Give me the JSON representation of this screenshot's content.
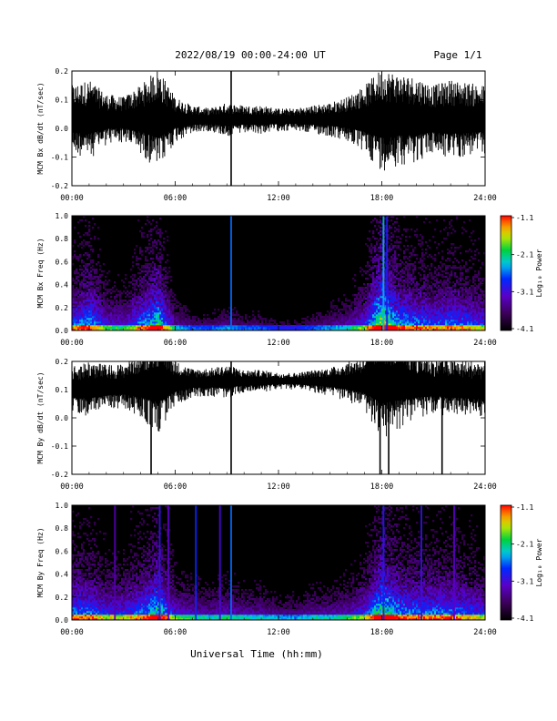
{
  "header": {
    "title": "2022/08/19  00:00-24:00 UT",
    "page": "Page 1/1"
  },
  "xlabel_main": "Universal Time (hh:mm)",
  "colorbar_title": "Log₁₀ Power",
  "chart_data": [
    {
      "type": "line",
      "ylabel": "MCM Bx dB/dt (nT/sec)",
      "xlim": [
        0,
        24
      ],
      "ylim": [
        -0.2,
        0.2
      ],
      "xticks": [
        "00:00",
        "06:00",
        "12:00",
        "18:00",
        "24:00"
      ],
      "yticks": [
        "-0.2",
        "-0.1",
        "0.0",
        "0.1",
        "0.2"
      ],
      "baseline": 0.03,
      "envelope_hours": [
        0,
        1,
        2,
        3,
        4,
        5,
        6,
        7,
        8,
        9,
        10,
        11,
        12,
        13,
        14,
        15,
        16,
        17,
        18,
        19,
        20,
        21,
        22,
        23,
        24
      ],
      "envelope_halfwidth": [
        0.12,
        0.14,
        0.09,
        0.08,
        0.12,
        0.18,
        0.08,
        0.05,
        0.04,
        0.06,
        0.05,
        0.05,
        0.04,
        0.04,
        0.05,
        0.06,
        0.08,
        0.12,
        0.18,
        0.16,
        0.15,
        0.12,
        0.14,
        0.13,
        0.12
      ],
      "spikes": [
        {
          "hour": 9.25,
          "low": -0.2,
          "high": 0.2
        }
      ]
    },
    {
      "type": "heatmap",
      "ylabel": "MCM Bx Freq (Hz)",
      "xlim": [
        0,
        24
      ],
      "ylim": [
        0.0,
        1.0
      ],
      "xticks": [
        "00:00",
        "06:00",
        "12:00",
        "18:00",
        "24:00"
      ],
      "yticks": [
        "0.0",
        "0.2",
        "0.4",
        "0.6",
        "0.8",
        "1.0"
      ],
      "clim": [
        -4.1,
        -1.1
      ],
      "colorbar_ticks": [
        "-1.1",
        "-2.1",
        "-3.1",
        "-4.1"
      ],
      "activity_hours": [
        0,
        1,
        2,
        3,
        4,
        5,
        6,
        7,
        8,
        9,
        10,
        11,
        12,
        13,
        14,
        15,
        16,
        17,
        18,
        19,
        20,
        21,
        22,
        23,
        24
      ],
      "activity": [
        0.5,
        0.6,
        0.4,
        0.35,
        0.55,
        0.7,
        0.3,
        0.2,
        0.2,
        0.25,
        0.2,
        0.2,
        0.15,
        0.15,
        0.2,
        0.25,
        0.3,
        0.45,
        0.85,
        0.6,
        0.55,
        0.5,
        0.55,
        0.5,
        0.45
      ],
      "lines": [
        {
          "hour": 9.25,
          "level": -2.6
        },
        {
          "hour": 18.1,
          "level": -2.4
        },
        {
          "hour": 18.3,
          "level": -2.9
        }
      ]
    },
    {
      "type": "line",
      "ylabel": "MCM By dB/dt (nT/sec)",
      "xlim": [
        0,
        24
      ],
      "ylim": [
        -0.2,
        0.2
      ],
      "xticks": [
        "00:00",
        "06:00",
        "12:00",
        "18:00",
        "24:00"
      ],
      "yticks": [
        "-0.2",
        "-0.1",
        "0.0",
        "0.1",
        "0.2"
      ],
      "baseline": 0.12,
      "envelope_hours": [
        0,
        1,
        2,
        3,
        4,
        5,
        6,
        7,
        8,
        9,
        10,
        11,
        12,
        13,
        14,
        15,
        16,
        17,
        18,
        19,
        20,
        21,
        22,
        23,
        24
      ],
      "envelope_halfwidth": [
        0.08,
        0.1,
        0.08,
        0.08,
        0.12,
        0.18,
        0.08,
        0.05,
        0.05,
        0.06,
        0.04,
        0.04,
        0.03,
        0.03,
        0.04,
        0.05,
        0.07,
        0.1,
        0.2,
        0.16,
        0.12,
        0.1,
        0.1,
        0.1,
        0.1
      ],
      "spikes": [
        {
          "hour": 4.6,
          "low": -0.2,
          "high": 0.2
        },
        {
          "hour": 9.25,
          "low": -0.2,
          "high": 0.2
        },
        {
          "hour": 17.9,
          "low": -0.2,
          "high": 0.2
        },
        {
          "hour": 18.4,
          "low": -0.2,
          "high": 0.2
        },
        {
          "hour": 21.5,
          "low": -0.2,
          "high": 0.2
        }
      ]
    },
    {
      "type": "heatmap",
      "ylabel": "MCM By Freq (Hz)",
      "xlim": [
        0,
        24
      ],
      "ylim": [
        0.0,
        1.0
      ],
      "xticks": [
        "00:00",
        "06:00",
        "12:00",
        "18:00",
        "24:00"
      ],
      "yticks": [
        "0.0",
        "0.2",
        "0.4",
        "0.6",
        "0.8",
        "1.0"
      ],
      "clim": [
        -4.1,
        -1.1
      ],
      "colorbar_ticks": [
        "-1.1",
        "-2.1",
        "-3.1",
        "-4.1"
      ],
      "activity_hours": [
        0,
        1,
        2,
        3,
        4,
        5,
        6,
        7,
        8,
        9,
        10,
        11,
        12,
        13,
        14,
        15,
        16,
        17,
        18,
        19,
        20,
        21,
        22,
        23,
        24
      ],
      "activity": [
        0.55,
        0.55,
        0.45,
        0.45,
        0.55,
        0.7,
        0.4,
        0.35,
        0.3,
        0.35,
        0.3,
        0.3,
        0.25,
        0.25,
        0.3,
        0.3,
        0.35,
        0.45,
        0.75,
        0.6,
        0.55,
        0.55,
        0.55,
        0.5,
        0.45
      ],
      "lines": [
        {
          "hour": 2.5,
          "level": -3.3
        },
        {
          "hour": 5.1,
          "level": -3.0
        },
        {
          "hour": 5.6,
          "level": -3.2
        },
        {
          "hour": 7.2,
          "level": -2.8
        },
        {
          "hour": 8.6,
          "level": -3.1
        },
        {
          "hour": 9.25,
          "level": -2.6
        },
        {
          "hour": 18.1,
          "level": -2.9
        },
        {
          "hour": 20.3,
          "level": -3.0
        },
        {
          "hour": 22.2,
          "level": -3.2
        }
      ]
    }
  ]
}
